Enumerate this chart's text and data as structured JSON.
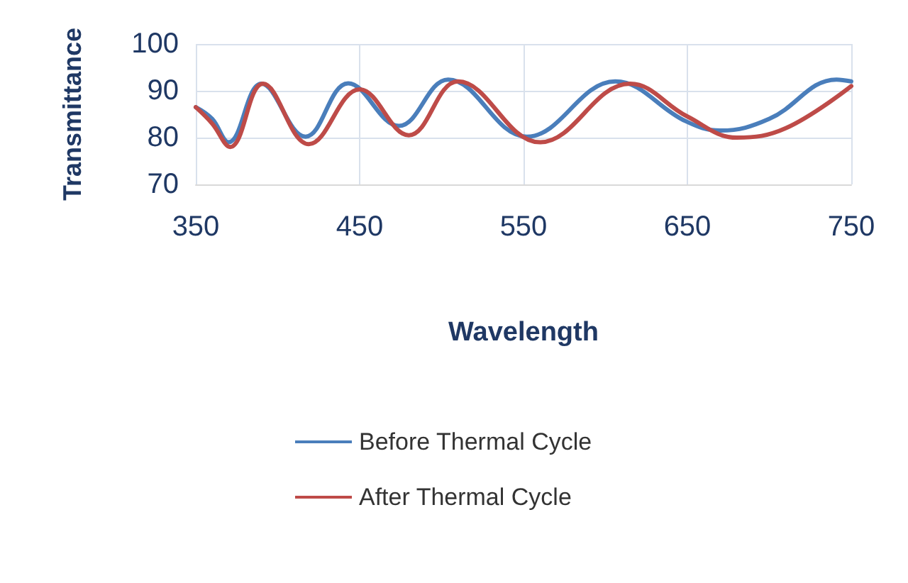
{
  "chart_data": {
    "type": "line",
    "xlabel": "Wavelength",
    "ylabel": "Transmittance",
    "xlim": [
      350,
      750
    ],
    "xticks": [
      350,
      450,
      550,
      650,
      750
    ],
    "ylim": [
      70,
      100
    ],
    "yticks": [
      70,
      80,
      90,
      100
    ],
    "grid": true,
    "legend": "bottom",
    "marker": "none",
    "line_style": "solid",
    "series": [
      {
        "name": "Before Thermal Cycle",
        "color": "#4a7ebb",
        "x": [
          350,
          360,
          370,
          390,
          417,
          443,
          474,
          504,
          552,
          606,
          649,
          670,
          700,
          741,
          750
        ],
        "values": [
          86.5,
          84,
          79,
          91.5,
          80.2,
          91.6,
          82.5,
          92.4,
          80.2,
          92,
          83.5,
          81.5,
          84,
          92.4,
          92
        ]
      },
      {
        "name": "After Thermal Cycle",
        "color": "#be4b48",
        "x": [
          350,
          360,
          371,
          391,
          419,
          450,
          480,
          510,
          560,
          615,
          650,
          680,
          710,
          750
        ],
        "values": [
          86.5,
          83,
          78,
          91.5,
          78.6,
          90.3,
          80.5,
          92,
          79,
          91.5,
          84.5,
          80,
          82,
          91
        ]
      }
    ]
  }
}
